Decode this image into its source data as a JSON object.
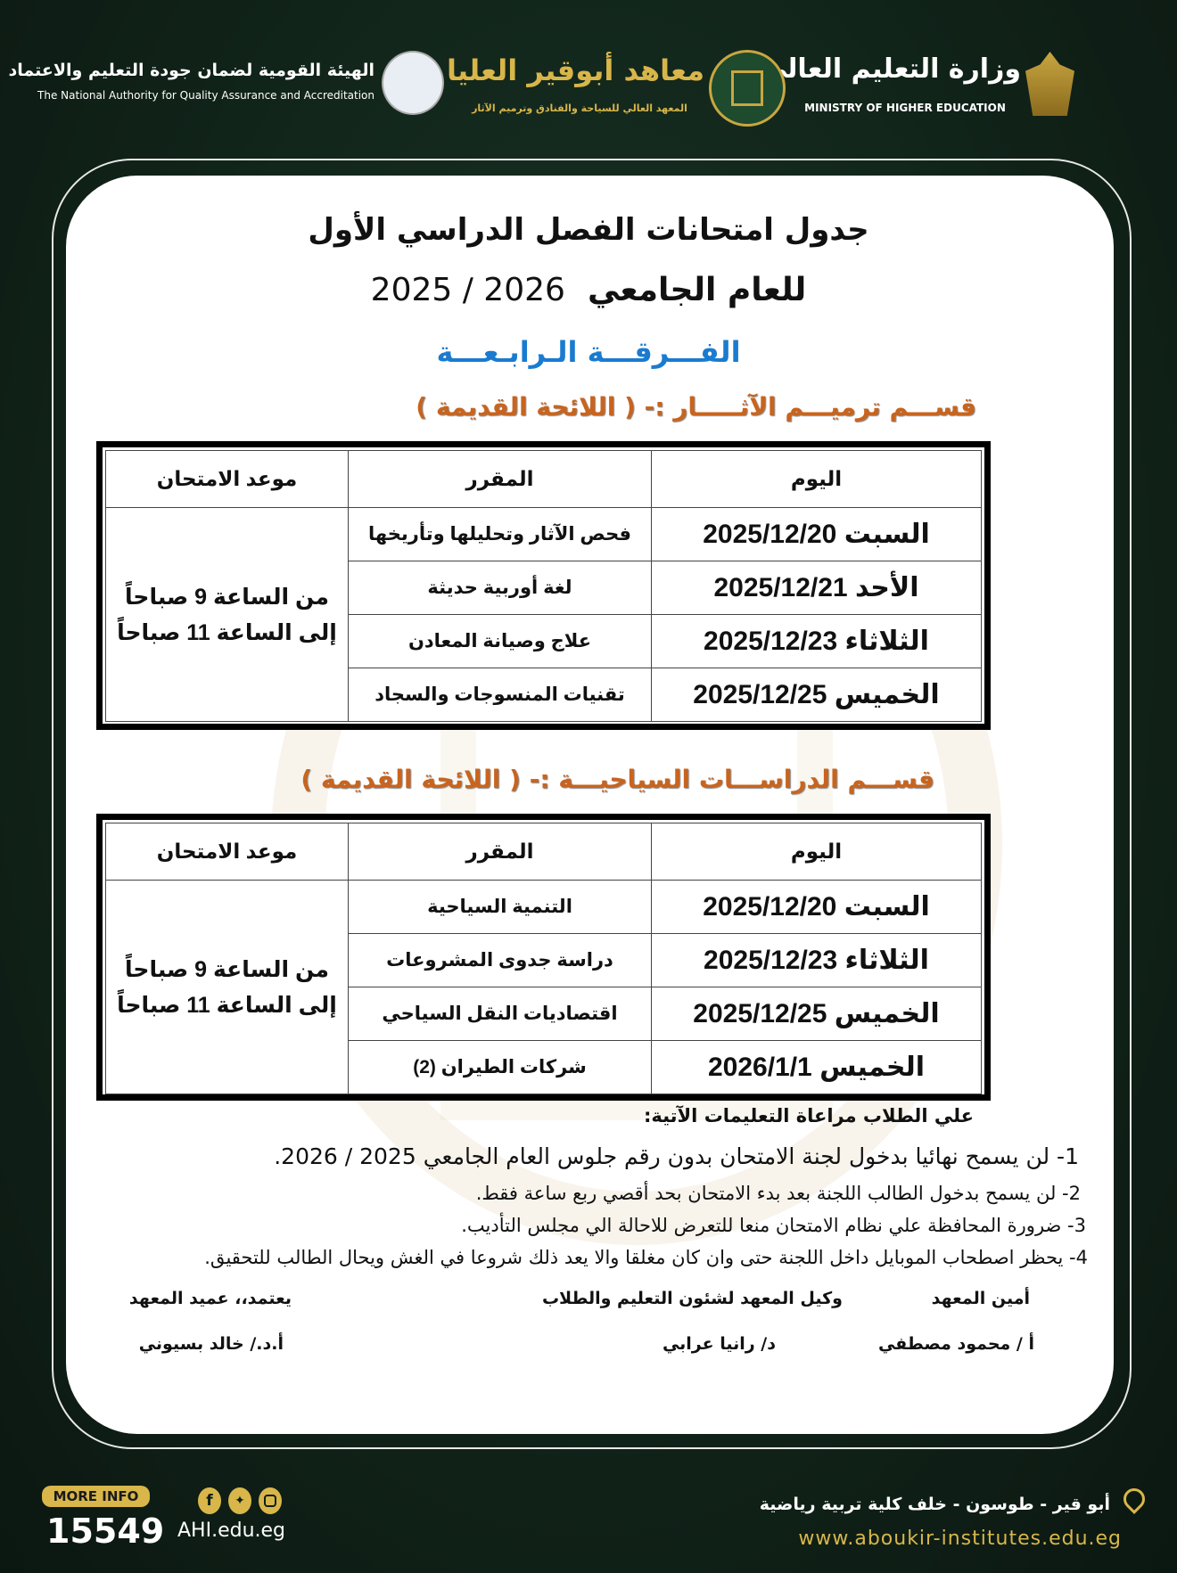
{
  "header": {
    "ministry_ar": "وزارة التعليم العالي",
    "ministry_en": "MINISTRY OF HIGHER EDUCATION",
    "institute_ar": "معاهد أبوقير العليا",
    "institute_sub": "المعهد العالي للسياحة والفنادق وترميم الآثار",
    "naqaae_ar": "الهيئة القومية لضمان جودة التعليم والاعتماد",
    "naqaae_en": "The National Authority for Quality Assurance and Accreditation"
  },
  "title": "جدول امتحانات الفصل الدراسي الأول",
  "year_label": "للعام الجامعي",
  "year": "2025 / 2026",
  "level": "الفـــرقـــة الـرابـعـــة",
  "sections": [
    {
      "heading": "قســـم ترميـــم الآثـــــار :- ( اللائحة القديمة )",
      "columns": [
        "اليوم",
        "المقرر",
        "موعد الامتحان"
      ],
      "time": "من الساعة 9 صباحاً إلى الساعة 11 صباحاً",
      "rows": [
        {
          "day": "السبت 2025/12/20",
          "course": "فحص الآثار وتحليلها وتأريخها"
        },
        {
          "day": "الأحد 2025/12/21",
          "course": "لغة أوربية حديثة"
        },
        {
          "day": "الثلاثاء 2025/12/23",
          "course": "علاج وصيانة المعادن"
        },
        {
          "day": "الخميس 2025/12/25",
          "course": "تقنيات المنسوجات والسجاد"
        }
      ]
    },
    {
      "heading": "قســـم الدراســـات السياحيـــة :- ( اللائحة القديمة )",
      "columns": [
        "اليوم",
        "المقرر",
        "موعد الامتحان"
      ],
      "time": "من الساعة 9 صباحاً إلى الساعة 11 صباحاً",
      "rows": [
        {
          "day": "السبت 2025/12/20",
          "course": "التنمية السياحية"
        },
        {
          "day": "الثلاثاء 2025/12/23",
          "course": "دراسة جدوى المشروعات"
        },
        {
          "day": "الخميس 2025/12/25",
          "course": "اقتصاديات النقل السياحي"
        },
        {
          "day": "الخميس 2026/1/1",
          "course": "شركات الطيران (2)"
        }
      ]
    }
  ],
  "instructions": {
    "heading": "علي الطلاب مراعاة التعليمات الآتية:",
    "items": [
      "1-  لن يسمح نهائيا بدخول لجنة الامتحان بدون رقم جلوس العام الجامعي 2025 / 2026.",
      "2- لن يسمح بدخول الطالب اللجنة بعد بدء الامتحان بحد أقصي ربع ساعة فقط.",
      "3-  ضرورة المحافظة علي نظام الامتحان منعا للتعرض للاحالة الي مجلس التأديب.",
      "4-  يحظر اصطحاب الموبايل داخل اللجنة حتى وان كان مغلقا والا يعد ذلك شروعا في الغش ويحال الطالب للتحقيق."
    ]
  },
  "signatures": [
    {
      "title": "أمين المعهد",
      "name": "أ / محمود مصطفي"
    },
    {
      "title": "وكيل المعهد لشئون التعليم والطلاب",
      "name": "د/ رانيا عرابي"
    },
    {
      "title": "يعتمد،، عميد المعهد",
      "name": "أ.د./ خالد بسيوني"
    }
  ],
  "footer": {
    "more_info": "MORE INFO",
    "hotline": "15549",
    "short_site": "AHI.edu.eg",
    "address": "أبو قير - طوسون - خلف كلية تربية رياضية",
    "website": "www.aboukir-institutes.edu.eg",
    "social_icons": [
      "facebook-icon",
      "twitter-icon",
      "instagram-icon"
    ]
  },
  "colors": {
    "background": "#12261b",
    "gold": "#d8b64a",
    "heading_orange": "#c8641e",
    "level_blue": "#1a7bd0"
  }
}
